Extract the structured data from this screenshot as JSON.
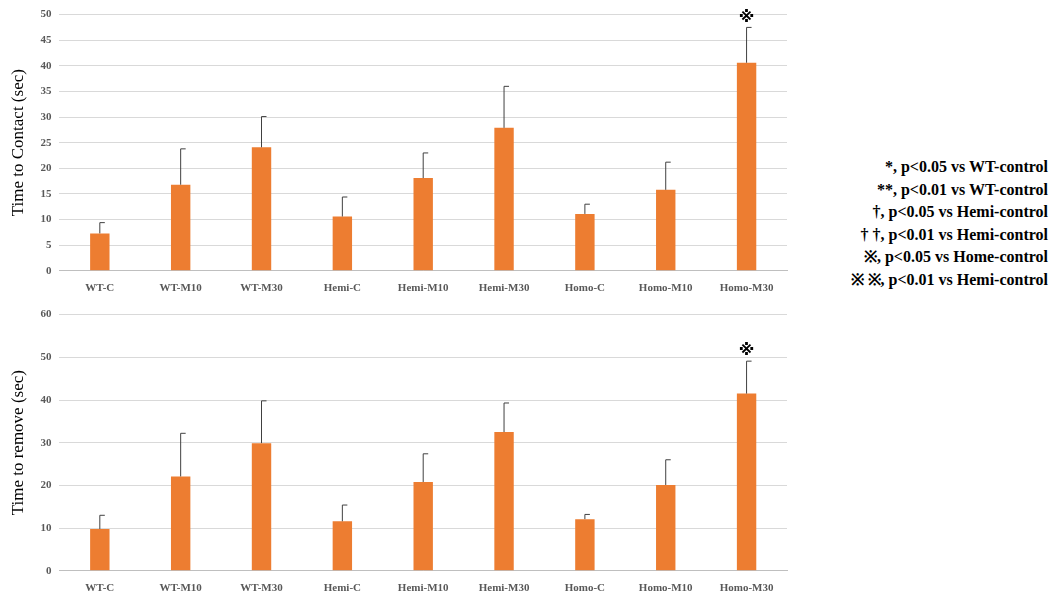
{
  "chart_data": [
    {
      "type": "bar",
      "y_label": "Time to Contact (sec)",
      "categories": [
        "WT-C",
        "WT-M10",
        "WT-M30",
        "Hemi-C",
        "Hemi-M10",
        "Hemi-M30",
        "Homo-C",
        "Homo-M10",
        "Homo-M30"
      ],
      "values": [
        7.3,
        16.8,
        24.1,
        10.6,
        18.1,
        27.9,
        11.1,
        15.8,
        40.6
      ],
      "errors": [
        2.1,
        7.0,
        6.0,
        3.8,
        4.9,
        8.1,
        1.9,
        5.4,
        6.9
      ],
      "color": "#ed7d31",
      "ylim": [
        0,
        50
      ],
      "yticks": [
        0,
        5,
        10,
        15,
        20,
        25,
        30,
        35,
        40,
        45,
        50
      ],
      "grid": true,
      "annotations": [
        {
          "category": "Homo-M30",
          "text": "※"
        }
      ]
    },
    {
      "type": "bar",
      "y_label": "Time to remove (sec)",
      "categories": [
        "WT-C",
        "WT-M10",
        "WT-M30",
        "Hemi-C",
        "Hemi-M10",
        "Hemi-M30",
        "Homo-C",
        "Homo-M10",
        "Homo-M30"
      ],
      "values": [
        9.8,
        22.1,
        29.9,
        11.6,
        20.8,
        32.5,
        12.1,
        20.1,
        41.5
      ],
      "errors": [
        3.2,
        10.1,
        9.9,
        3.8,
        6.6,
        6.8,
        1.1,
        5.9,
        7.6
      ],
      "color": "#ed7d31",
      "ylim": [
        0,
        60
      ],
      "yticks": [
        0,
        10,
        20,
        30,
        40,
        50,
        60
      ],
      "grid": true,
      "annotations": [
        {
          "category": "Homo-M30",
          "text": "※"
        }
      ]
    }
  ],
  "significance_notes": [
    "*, p<0.05 vs WT-control",
    "**, p<0.01 vs WT-control",
    "†, p<0.05 vs Hemi-control",
    "† †, p<0.01 vs Hemi-control",
    "※, p<0.05 vs Home-control",
    "※ ※, p<0.01 vs Hemi-control"
  ]
}
